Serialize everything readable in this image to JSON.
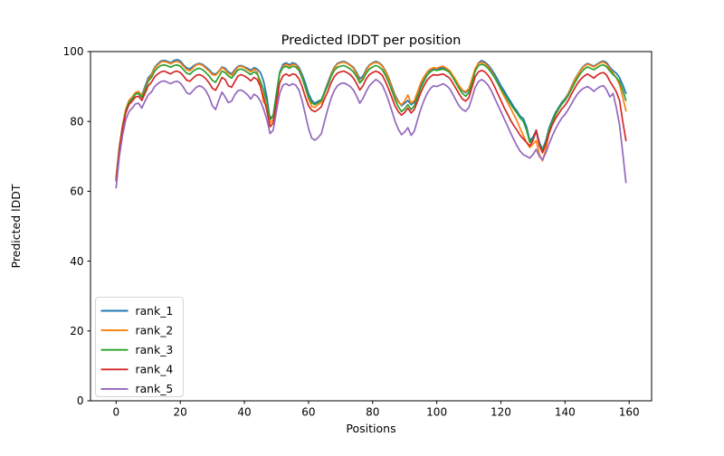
{
  "chart_data": {
    "type": "line",
    "title": "Predicted lDDT per position",
    "xlabel": "Positions",
    "ylabel": "Predicted lDDT",
    "xlim": [
      -8,
      167
    ],
    "ylim": [
      0,
      100
    ],
    "xticks": [
      0,
      20,
      40,
      60,
      80,
      100,
      120,
      140,
      160
    ],
    "yticks": [
      0,
      20,
      40,
      60,
      80,
      100
    ],
    "grid": false,
    "legend_position": "lower left",
    "x_start": 0,
    "x_step": 1,
    "series": [
      {
        "name": "rank_1",
        "color": "#1f77b4",
        "values": [
          63,
          72,
          78,
          83,
          85.5,
          86.5,
          88,
          88.5,
          87.5,
          90,
          92.5,
          93.5,
          95.5,
          96.5,
          97.3,
          97.5,
          97.2,
          96.8,
          97.4,
          97.7,
          97.3,
          96.2,
          95.3,
          95.0,
          95.8,
          96.4,
          96.6,
          96.3,
          95.6,
          94.8,
          93.8,
          93.5,
          94.4,
          95.6,
          95.2,
          94.2,
          93.6,
          94.8,
          95.8,
          96.0,
          95.6,
          95.2,
          94.6,
          95.4,
          95.0,
          94.0,
          91.5,
          87.0,
          80.5,
          81.5,
          88.0,
          94.0,
          96.3,
          96.8,
          96.2,
          96.8,
          96.5,
          95.5,
          93.5,
          91.0,
          88.0,
          86.0,
          85.2,
          85.8,
          86.2,
          88.5,
          91.0,
          93.5,
          95.5,
          96.6,
          97.0,
          97.2,
          96.8,
          96.2,
          95.5,
          94.0,
          92.2,
          93.0,
          95.0,
          96.2,
          96.8,
          97.2,
          96.8,
          96.0,
          94.5,
          92.5,
          90.0,
          87.5,
          85.8,
          84.5,
          85.2,
          86.0,
          84.8,
          85.5,
          88.0,
          90.5,
          92.5,
          94.0,
          94.8,
          95.2,
          95.0,
          95.2,
          95.4,
          95.0,
          94.4,
          93.0,
          91.5,
          90.0,
          88.8,
          88.2,
          89.0,
          92.0,
          95.0,
          96.8,
          97.4,
          97.0,
          96.2,
          95.0,
          93.6,
          92.0,
          90.2,
          88.8,
          87.2,
          85.8,
          84.2,
          83.0,
          81.5,
          80.8,
          78.5,
          74.5,
          75.5,
          77.5,
          74.0,
          72.0,
          74.5,
          78.0,
          80.5,
          82.5,
          84.0,
          85.5,
          86.5,
          88.0,
          90.0,
          92.0,
          93.5,
          95.0,
          96.0,
          96.6,
          96.2,
          95.8,
          96.4,
          97.0,
          97.3,
          96.8,
          95.5,
          94.5,
          93.8,
          92.5,
          90.5,
          88.0
        ]
      },
      {
        "name": "rank_2",
        "color": "#ff7f0e",
        "values": [
          64,
          73,
          79,
          83.5,
          86,
          87,
          88.3,
          88.6,
          87.2,
          89.5,
          92,
          93.2,
          95.2,
          96.2,
          97.0,
          97.2,
          96.9,
          96.5,
          97.0,
          97.2,
          96.8,
          95.8,
          94.8,
          94.5,
          95.4,
          96.2,
          96.4,
          96.0,
          95.2,
          94.4,
          93.4,
          93.2,
          94.2,
          95.4,
          94.8,
          93.8,
          93.2,
          94.4,
          95.6,
          95.8,
          95.4,
          94.8,
          94.2,
          95.0,
          94.2,
          90.0,
          85.5,
          84.5,
          79.5,
          80.5,
          87.0,
          93.5,
          95.8,
          96.4,
          95.8,
          96.4,
          96.2,
          95.0,
          92.8,
          89.5,
          86.5,
          84.3,
          84.0,
          84.8,
          85.5,
          88.0,
          90.5,
          93.2,
          95.2,
          96.4,
          96.8,
          97.0,
          96.6,
          96.0,
          95.2,
          93.5,
          91.2,
          92.4,
          94.6,
          96.0,
          96.6,
          97.0,
          96.6,
          95.8,
          94.2,
          92.2,
          89.5,
          87.0,
          85.5,
          84.8,
          85.8,
          87.6,
          85.2,
          86.0,
          88.5,
          91.0,
          92.8,
          94.2,
          95.0,
          95.4,
          95.2,
          95.6,
          95.8,
          95.2,
          94.6,
          93.2,
          91.8,
          90.2,
          89.0,
          88.5,
          89.4,
          92.2,
          95.2,
          96.6,
          97.0,
          96.6,
          95.8,
          94.4,
          92.8,
          91.0,
          89.0,
          87.2,
          85.5,
          83.8,
          82.0,
          80.2,
          78.0,
          76.0,
          74.0,
          72.5,
          73.5,
          74.5,
          70.5,
          68.7,
          72.0,
          76.5,
          79.5,
          81.8,
          83.5,
          85.0,
          86.2,
          87.8,
          89.8,
          91.8,
          93.4,
          94.8,
          95.8,
          96.4,
          96.0,
          95.6,
          96.2,
          96.8,
          97.0,
          96.4,
          95.0,
          93.8,
          92.5,
          90.5,
          87.0,
          83.0
        ]
      },
      {
        "name": "rank_3",
        "color": "#2ca02c",
        "values": [
          63.5,
          72.5,
          78.5,
          83,
          85.5,
          86.5,
          87.8,
          88.0,
          86.8,
          89.0,
          91.5,
          92.6,
          94.4,
          95.4,
          96.0,
          96.2,
          95.9,
          95.5,
          96.0,
          96.2,
          95.8,
          94.8,
          93.8,
          93.5,
          94.4,
          95.0,
          95.2,
          94.8,
          94.0,
          93.0,
          91.8,
          91.2,
          92.8,
          94.4,
          94.0,
          93.0,
          92.4,
          93.6,
          94.8,
          95.0,
          94.6,
          94.0,
          93.4,
          94.2,
          93.6,
          91.5,
          89.0,
          85.5,
          80.8,
          81.8,
          88.0,
          93.8,
          95.4,
          95.8,
          95.2,
          95.8,
          95.6,
          94.6,
          92.4,
          89.8,
          87.0,
          85.3,
          84.8,
          85.4,
          86.0,
          88.2,
          90.2,
          92.8,
          94.6,
          95.5,
          95.8,
          96.0,
          95.6,
          95.0,
          94.2,
          92.8,
          91.0,
          92.0,
          93.8,
          95.0,
          95.6,
          96.0,
          95.6,
          94.8,
          93.2,
          91.2,
          88.8,
          86.2,
          84.2,
          82.8,
          83.6,
          84.8,
          83.4,
          84.4,
          87.0,
          89.5,
          91.5,
          93.2,
          94.2,
          94.8,
          94.6,
          94.8,
          95.0,
          94.6,
          94.0,
          92.6,
          91.0,
          89.4,
          88.0,
          87.2,
          88.2,
          91.2,
          94.4,
          96.0,
          96.4,
          96.0,
          95.2,
          94.0,
          92.6,
          91.0,
          89.4,
          88.0,
          86.4,
          85.0,
          83.6,
          82.4,
          81.0,
          80.0,
          77.5,
          74.0,
          75.0,
          77.0,
          73.5,
          71.5,
          74.0,
          77.5,
          80.0,
          82.0,
          83.6,
          85.0,
          86.0,
          87.4,
          89.2,
          91.0,
          92.6,
          94.0,
          95.0,
          95.6,
          95.2,
          94.8,
          95.4,
          96.0,
          96.2,
          95.6,
          94.4,
          93.4,
          92.6,
          91.4,
          89.0,
          86.0
        ]
      },
      {
        "name": "rank_4",
        "color": "#d62728",
        "values": [
          63,
          72,
          78,
          82.5,
          84.8,
          85.8,
          87.0,
          87.2,
          86.0,
          88.0,
          90.2,
          91.2,
          92.8,
          93.6,
          94.2,
          94.4,
          94.0,
          93.6,
          94.2,
          94.4,
          94.0,
          93.0,
          91.8,
          91.5,
          92.4,
          93.2,
          93.4,
          93.0,
          92.2,
          91.0,
          89.5,
          88.9,
          90.6,
          92.6,
          92.0,
          90.2,
          89.8,
          91.4,
          93.0,
          93.4,
          93.0,
          92.4,
          91.6,
          92.6,
          92.0,
          90.0,
          87.0,
          83.0,
          78.5,
          79.5,
          85.5,
          91.0,
          93.0,
          93.6,
          93.0,
          93.6,
          93.4,
          92.2,
          90.0,
          87.0,
          84.5,
          83.2,
          82.8,
          83.4,
          84.2,
          86.5,
          88.5,
          91.0,
          92.8,
          93.8,
          94.2,
          94.4,
          94.0,
          93.4,
          92.4,
          90.8,
          89.0,
          90.2,
          92.2,
          93.4,
          94.0,
          94.4,
          94.0,
          93.2,
          91.4,
          89.2,
          86.8,
          84.4,
          82.8,
          81.8,
          82.6,
          83.8,
          82.4,
          83.4,
          85.8,
          88.2,
          90.2,
          91.8,
          92.8,
          93.4,
          93.2,
          93.4,
          93.6,
          93.0,
          92.4,
          91.0,
          89.4,
          87.8,
          86.4,
          85.8,
          86.8,
          89.8,
          92.8,
          94.2,
          94.6,
          94.2,
          93.2,
          91.8,
          90.0,
          88.0,
          86.0,
          84.0,
          82.2,
          80.4,
          78.8,
          77.5,
          76.0,
          75.0,
          74.0,
          73.0,
          74.5,
          77.5,
          73.0,
          71.0,
          73.5,
          76.5,
          79.0,
          80.8,
          82.2,
          83.6,
          84.6,
          86.0,
          87.8,
          89.5,
          91.0,
          92.2,
          93.0,
          93.6,
          93.0,
          92.4,
          93.2,
          93.8,
          94.0,
          93.2,
          91.5,
          90.0,
          88.5,
          86.0,
          80.0,
          74.5
        ]
      },
      {
        "name": "rank_5",
        "color": "#9467bd",
        "values": [
          61,
          70,
          76,
          80.5,
          82.8,
          83.8,
          85.0,
          85.2,
          83.8,
          85.8,
          87.6,
          88.4,
          90.0,
          90.8,
          91.4,
          91.6,
          91.2,
          90.8,
          91.3,
          91.5,
          91.0,
          89.8,
          88.2,
          87.8,
          88.8,
          89.8,
          90.2,
          89.8,
          88.8,
          87.0,
          84.5,
          83.4,
          86.0,
          88.4,
          87.0,
          85.4,
          85.8,
          87.6,
          88.8,
          89.0,
          88.4,
          87.6,
          86.4,
          87.8,
          87.2,
          85.8,
          83.5,
          80.5,
          76.5,
          77.5,
          83.0,
          88.0,
          90.4,
          90.8,
          90.2,
          90.8,
          90.4,
          89.0,
          86.0,
          82.0,
          78.0,
          75.2,
          74.6,
          75.4,
          76.5,
          80.0,
          83.5,
          86.5,
          88.8,
          90.2,
          90.8,
          91.0,
          90.6,
          90.0,
          89.0,
          87.2,
          85.2,
          86.6,
          88.6,
          90.2,
          91.2,
          92.0,
          91.4,
          90.4,
          88.4,
          85.8,
          83.0,
          80.0,
          77.8,
          76.2,
          77.0,
          78.2,
          76.0,
          77.2,
          80.5,
          83.5,
          86.0,
          88.0,
          89.4,
          90.2,
          90.0,
          90.4,
          90.8,
          90.2,
          89.4,
          87.8,
          86.0,
          84.4,
          83.4,
          82.9,
          84.0,
          86.8,
          89.8,
          91.4,
          92.0,
          91.4,
          90.4,
          88.8,
          86.8,
          84.8,
          82.8,
          80.8,
          78.8,
          76.8,
          74.8,
          73.0,
          71.5,
          70.5,
          70.0,
          69.5,
          70.5,
          72.0,
          70.0,
          69.0,
          71.0,
          73.5,
          75.8,
          77.8,
          79.5,
          81.0,
          82.0,
          83.4,
          85.0,
          86.6,
          88.0,
          89.0,
          89.6,
          90.0,
          89.4,
          88.6,
          89.4,
          90.0,
          90.2,
          89.0,
          87.0,
          88.0,
          84.0,
          79.0,
          71.0,
          62.5
        ]
      }
    ]
  }
}
